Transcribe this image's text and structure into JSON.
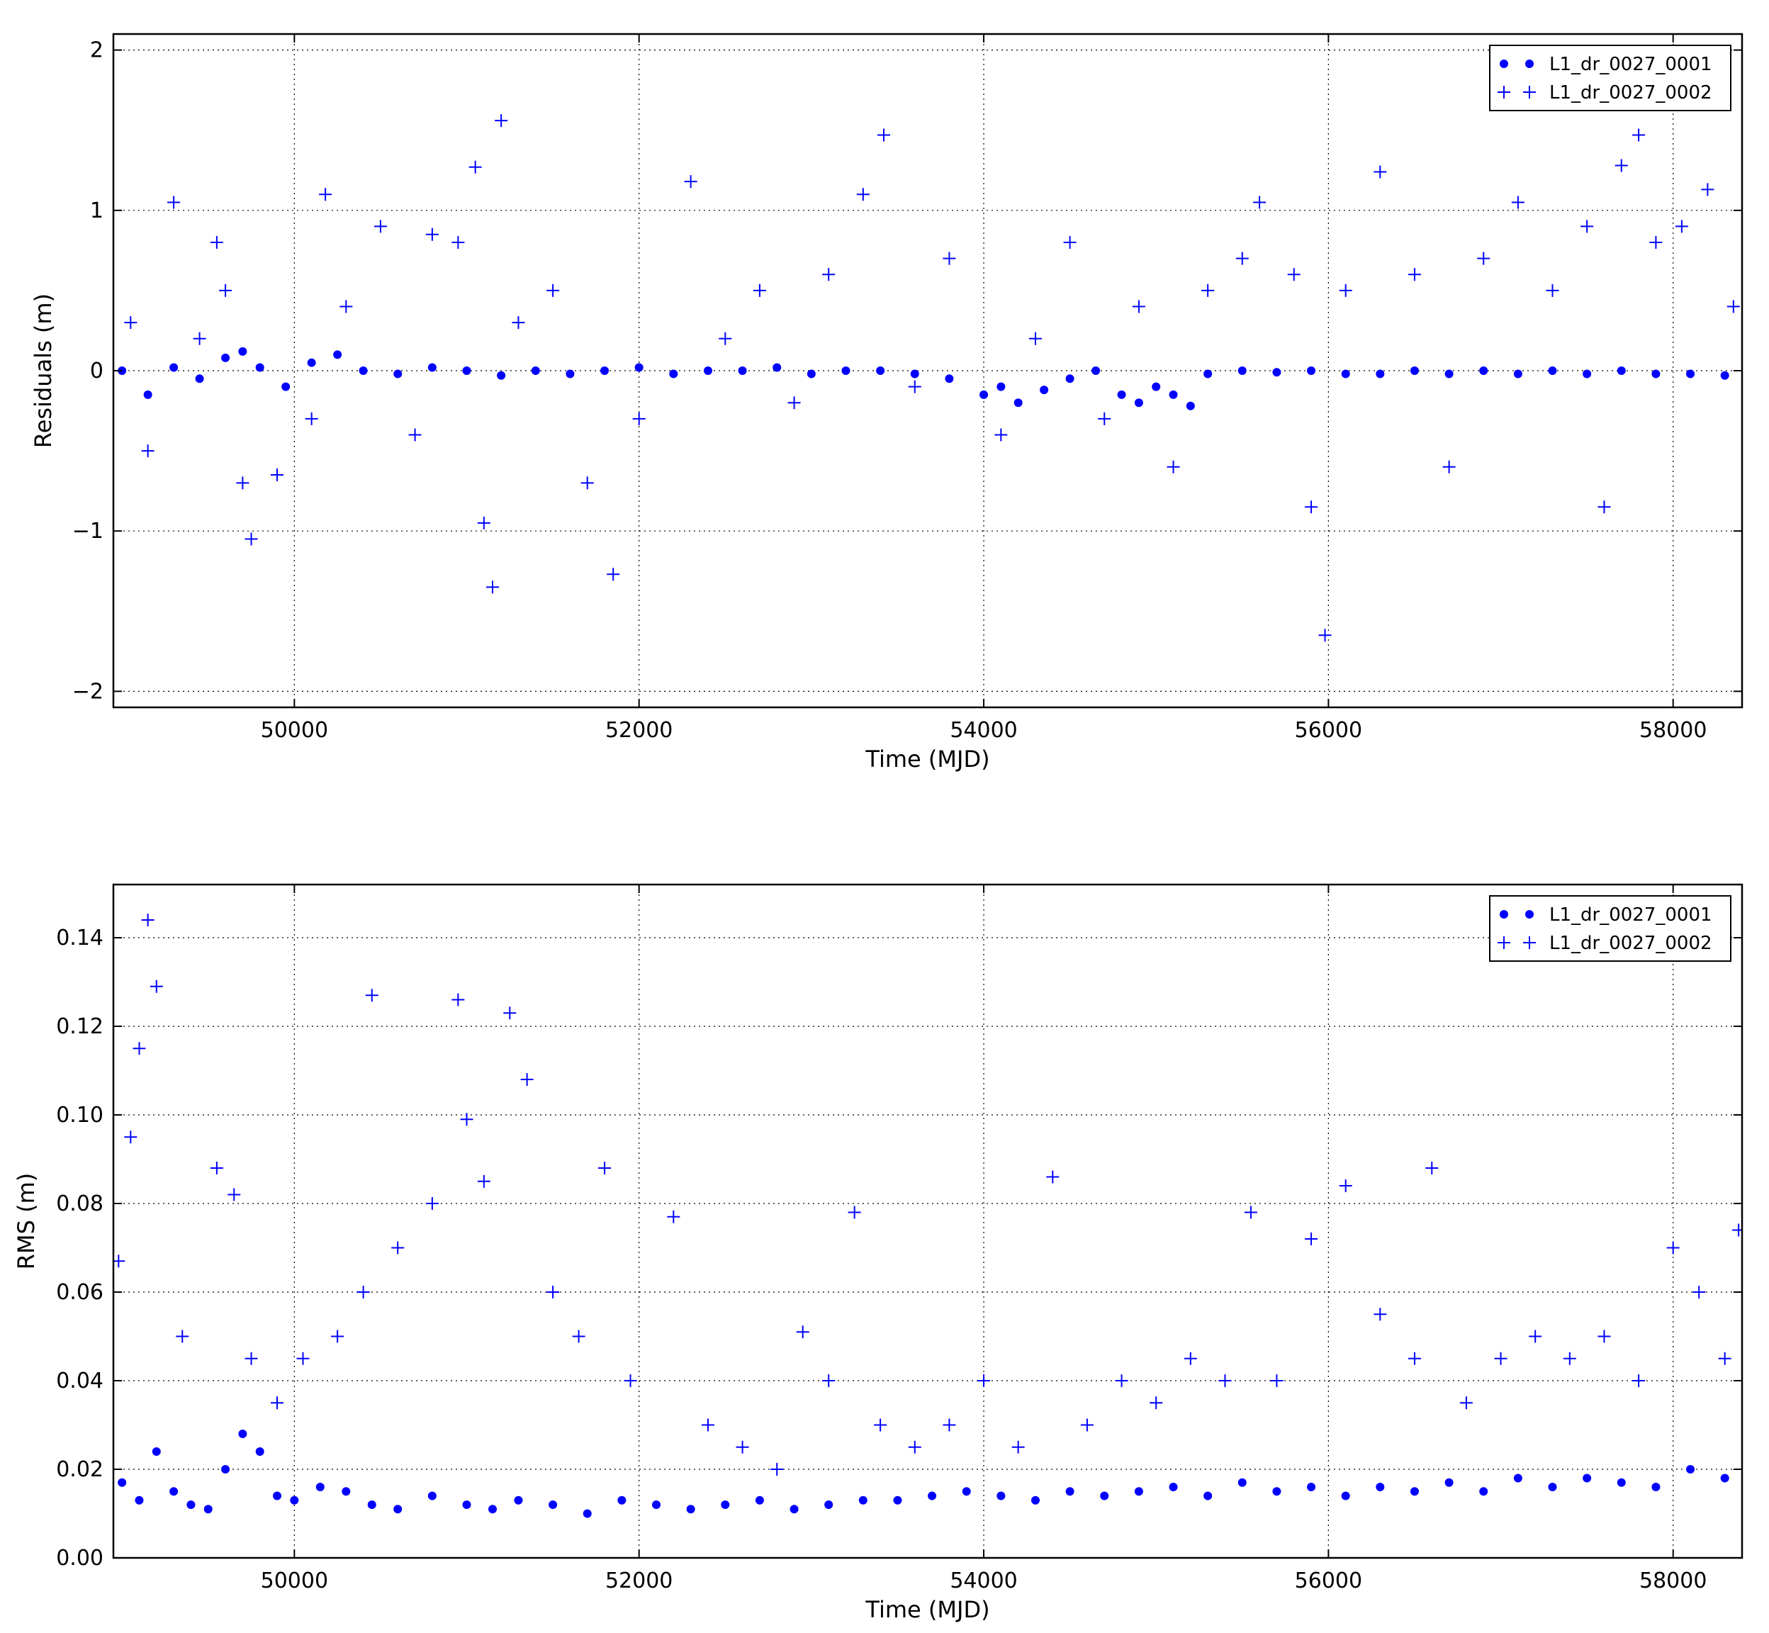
{
  "chart_data": [
    {
      "type": "scatter",
      "title": "",
      "xlabel": "Time (MJD)",
      "ylabel": "Residuals (m)",
      "xlim": [
        48950,
        58400
      ],
      "ylim": [
        -2.1,
        2.1
      ],
      "xticks": [
        50000,
        52000,
        54000,
        56000,
        58000
      ],
      "xtick_labels": [
        "50000",
        "52000",
        "54000",
        "56000",
        "58000"
      ],
      "yticks": [
        -2,
        -1,
        0,
        1,
        2
      ],
      "ytick_labels": [
        "−2",
        "−1",
        "0",
        "1",
        "2"
      ],
      "grid": true,
      "legend_position": "top-right",
      "series": [
        {
          "name": "L1_dr_0027_0001",
          "marker": "dot",
          "color": "#0000ff",
          "x": [
            49000,
            49150,
            49300,
            49450,
            49600,
            49700,
            49800,
            49950,
            50100,
            50250,
            50400,
            50600,
            50800,
            51000,
            51200,
            51400,
            51600,
            51800,
            52000,
            52200,
            52400,
            52600,
            52800,
            53000,
            53200,
            53400,
            53600,
            53800,
            54000,
            54100,
            54200,
            54350,
            54500,
            54650,
            54800,
            54900,
            55000,
            55100,
            55200,
            55300,
            55500,
            55700,
            55900,
            56100,
            56300,
            56500,
            56700,
            56900,
            57100,
            57300,
            57500,
            57700,
            57900,
            58100,
            58300
          ],
          "y": [
            0.0,
            -0.15,
            0.02,
            -0.05,
            0.08,
            0.12,
            0.02,
            -0.1,
            0.05,
            0.1,
            0.0,
            -0.02,
            0.02,
            0.0,
            -0.03,
            0.0,
            -0.02,
            0.0,
            0.02,
            -0.02,
            0.0,
            0.0,
            0.02,
            -0.02,
            0.0,
            0.0,
            -0.02,
            -0.05,
            -0.15,
            -0.1,
            -0.2,
            -0.12,
            -0.05,
            0.0,
            -0.15,
            -0.2,
            -0.1,
            -0.15,
            -0.22,
            -0.02,
            0.0,
            -0.01,
            0.0,
            -0.02,
            -0.02,
            0.0,
            -0.02,
            0.0,
            -0.02,
            0.0,
            -0.02,
            0.0,
            -0.02,
            -0.02,
            -0.03
          ]
        },
        {
          "name": "L1_dr_0027_0002",
          "marker": "plus",
          "color": "#0000ff",
          "x": [
            49050,
            49150,
            49300,
            49450,
            49550,
            49600,
            49700,
            49750,
            49900,
            50100,
            50180,
            50300,
            50500,
            50700,
            50800,
            50950,
            51050,
            51100,
            51150,
            51200,
            51300,
            51500,
            51700,
            51850,
            52000,
            52300,
            52500,
            52700,
            52900,
            53100,
            53300,
            53420,
            53600,
            53800,
            54100,
            54300,
            54500,
            54700,
            54900,
            55100,
            55300,
            55500,
            55600,
            55800,
            55900,
            55980,
            56100,
            56300,
            56500,
            56700,
            56900,
            57100,
            57300,
            57500,
            57600,
            57700,
            57800,
            57900,
            58050,
            58200,
            58350
          ],
          "y": [
            0.3,
            -0.5,
            1.05,
            0.2,
            0.8,
            0.5,
            -0.7,
            -1.05,
            -0.65,
            -0.3,
            1.1,
            0.4,
            0.9,
            -0.4,
            0.85,
            0.8,
            1.27,
            -0.95,
            -1.35,
            1.56,
            0.3,
            0.5,
            -0.7,
            -1.27,
            -0.3,
            1.18,
            0.2,
            0.5,
            -0.2,
            0.6,
            1.1,
            1.47,
            -0.1,
            0.7,
            -0.4,
            0.2,
            0.8,
            -0.3,
            0.4,
            -0.6,
            0.5,
            0.7,
            1.05,
            0.6,
            -0.85,
            -1.65,
            0.5,
            1.24,
            0.6,
            -0.6,
            0.7,
            1.05,
            0.5,
            0.9,
            -0.85,
            1.28,
            1.47,
            0.8,
            0.9,
            1.13,
            0.4
          ]
        }
      ]
    },
    {
      "type": "scatter",
      "title": "",
      "xlabel": "Time (MJD)",
      "ylabel": "RMS (m)",
      "xlim": [
        48950,
        58400
      ],
      "ylim": [
        0.0,
        0.152
      ],
      "xticks": [
        50000,
        52000,
        54000,
        56000,
        58000
      ],
      "xtick_labels": [
        "50000",
        "52000",
        "54000",
        "56000",
        "58000"
      ],
      "yticks": [
        0.0,
        0.02,
        0.04,
        0.06,
        0.08,
        0.1,
        0.12,
        0.14
      ],
      "ytick_labels": [
        "0.00",
        "0.02",
        "0.04",
        "0.06",
        "0.08",
        "0.10",
        "0.12",
        "0.14"
      ],
      "grid": true,
      "legend_position": "top-right",
      "series": [
        {
          "name": "L1_dr_0027_0001",
          "marker": "dot",
          "color": "#0000ff",
          "x": [
            49000,
            49100,
            49200,
            49300,
            49400,
            49500,
            49600,
            49700,
            49800,
            49900,
            50000,
            50150,
            50300,
            50450,
            50600,
            50800,
            51000,
            51150,
            51300,
            51500,
            51700,
            51900,
            52100,
            52300,
            52500,
            52700,
            52900,
            53100,
            53300,
            53500,
            53700,
            53900,
            54100,
            54300,
            54500,
            54700,
            54900,
            55100,
            55300,
            55500,
            55700,
            55900,
            56100,
            56300,
            56500,
            56700,
            56900,
            57100,
            57300,
            57500,
            57700,
            57900,
            58100,
            58300
          ],
          "y": [
            0.017,
            0.013,
            0.024,
            0.015,
            0.012,
            0.011,
            0.02,
            0.028,
            0.024,
            0.014,
            0.013,
            0.016,
            0.015,
            0.012,
            0.011,
            0.014,
            0.012,
            0.011,
            0.013,
            0.012,
            0.01,
            0.013,
            0.012,
            0.011,
            0.012,
            0.013,
            0.011,
            0.012,
            0.013,
            0.013,
            0.014,
            0.015,
            0.014,
            0.013,
            0.015,
            0.014,
            0.015,
            0.016,
            0.014,
            0.017,
            0.015,
            0.016,
            0.014,
            0.016,
            0.015,
            0.017,
            0.015,
            0.018,
            0.016,
            0.018,
            0.017,
            0.016,
            0.02,
            0.018
          ]
        },
        {
          "name": "L1_dr_0027_0002",
          "marker": "plus",
          "color": "#0000ff",
          "x": [
            48980,
            49050,
            49100,
            49150,
            49200,
            49350,
            49550,
            49650,
            49750,
            49900,
            50050,
            50250,
            50400,
            50450,
            50600,
            50800,
            50950,
            51000,
            51100,
            51250,
            51350,
            51500,
            51650,
            51800,
            51950,
            52200,
            52400,
            52600,
            52800,
            52950,
            53100,
            53250,
            53400,
            53600,
            53800,
            54000,
            54200,
            54400,
            54600,
            54800,
            55000,
            55200,
            55400,
            55550,
            55700,
            55900,
            56100,
            56300,
            56500,
            56600,
            56800,
            57000,
            57200,
            57400,
            57600,
            57800,
            58000,
            58150,
            58300,
            58380
          ],
          "y": [
            0.067,
            0.095,
            0.115,
            0.144,
            0.129,
            0.05,
            0.088,
            0.082,
            0.045,
            0.035,
            0.045,
            0.05,
            0.06,
            0.127,
            0.07,
            0.08,
            0.126,
            0.099,
            0.085,
            0.123,
            0.108,
            0.06,
            0.05,
            0.088,
            0.04,
            0.077,
            0.03,
            0.025,
            0.02,
            0.051,
            0.04,
            0.078,
            0.03,
            0.025,
            0.03,
            0.04,
            0.025,
            0.086,
            0.03,
            0.04,
            0.035,
            0.045,
            0.04,
            0.078,
            0.04,
            0.072,
            0.084,
            0.055,
            0.045,
            0.088,
            0.035,
            0.045,
            0.05,
            0.045,
            0.05,
            0.04,
            0.07,
            0.06,
            0.045,
            0.074
          ]
        }
      ]
    }
  ]
}
